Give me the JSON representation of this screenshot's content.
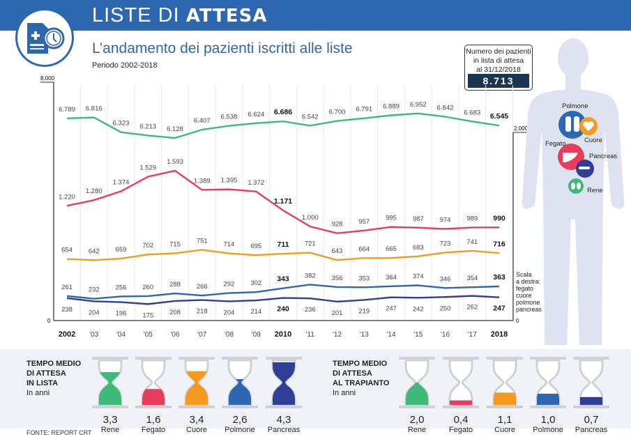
{
  "header": {
    "title_light": "LISTE DI",
    "title_bold": "ATTESA",
    "subtitle": "L’andamento dei pazienti iscritti alle liste",
    "period": "Periodo 2002-2018"
  },
  "total": {
    "label_line1": "Numero dei pazienti",
    "label_line2": "in lista di attesa",
    "label_line3": "al 31/12/2018",
    "value": "8.713"
  },
  "chart_data": {
    "type": "line",
    "x": [
      "2002",
      "'03",
      "'04",
      "'05",
      "'06",
      "'07",
      "'08",
      "'09",
      "2010",
      "'11",
      "'12",
      "'13",
      "'14",
      "'15",
      "'16",
      "'17",
      "2018"
    ],
    "bold_x": [
      0,
      8,
      16
    ],
    "left_axis": {
      "ylim": [
        0,
        8000
      ],
      "tick_labels": [
        "8.000",
        "0"
      ]
    },
    "right_axis": {
      "ylim": [
        0,
        2000
      ],
      "tick_labels": [
        "2.000",
        "0"
      ],
      "note": [
        "Scala",
        "a destra:",
        "fegato",
        "cuore",
        "polmone",
        "pancreas"
      ]
    },
    "series": [
      {
        "name": "Rene",
        "axis": "left",
        "color": "#3dba7a",
        "label_pos": "above",
        "values": [
          6789,
          6816,
          6323,
          6213,
          6128,
          6407,
          6538,
          6624,
          6686,
          6542,
          6700,
          6791,
          6889,
          6952,
          6842,
          6683,
          6545
        ]
      },
      {
        "name": "Fegato",
        "axis": "right",
        "color": "#e83c5c",
        "label_pos": "above",
        "values": [
          1220,
          1280,
          1374,
          1529,
          1593,
          1389,
          1395,
          1372,
          1171,
          1000,
          928,
          957,
          995,
          987,
          974,
          989,
          990
        ]
      },
      {
        "name": "Cuore",
        "axis": "right",
        "color": "#f59a1e",
        "label_pos": "above",
        "values": [
          654,
          642,
          659,
          702,
          715,
          751,
          714,
          695,
          711,
          721,
          643,
          664,
          665,
          683,
          723,
          741,
          716
        ]
      },
      {
        "name": "Polmone",
        "axis": "right",
        "color": "#2d67b0",
        "label_pos": "above",
        "values": [
          261,
          232,
          256,
          260,
          288,
          266,
          292,
          302,
          343,
          382,
          356,
          353,
          364,
          374,
          346,
          354,
          363
        ]
      },
      {
        "name": "Pancreas",
        "axis": "right",
        "color": "#2f3f96",
        "label_pos": "below",
        "values": [
          238,
          204,
          196,
          175,
          208,
          218,
          204,
          214,
          240,
          236,
          201,
          219,
          247,
          242,
          250,
          262,
          247
        ]
      }
    ]
  },
  "body": {
    "labels": [
      "Polmone",
      "Cuore",
      "Fegato",
      "Pancreas",
      "Rene"
    ]
  },
  "panels": [
    {
      "title": [
        "TEMPO MEDIO",
        "DI ATTESA",
        "IN LISTA"
      ],
      "unit": "In anni",
      "items": [
        {
          "name": "Rene",
          "value": "3,3",
          "years": 3.3,
          "color": "#3dba7a"
        },
        {
          "name": "Fegato",
          "value": "1,6",
          "years": 1.6,
          "color": "#e83c5c"
        },
        {
          "name": "Cuore",
          "value": "3,4",
          "years": 3.4,
          "color": "#f59a1e"
        },
        {
          "name": "Polmone",
          "value": "2,6",
          "years": 2.6,
          "color": "#2d67b0"
        },
        {
          "name": "Pancreas",
          "value": "4,3",
          "years": 4.3,
          "color": "#2f3f96"
        }
      ]
    },
    {
      "title": [
        "TEMPO MEDIO",
        "DI ATTESA",
        "AL TRAPIANTO"
      ],
      "unit": "In anni",
      "items": [
        {
          "name": "Rene",
          "value": "2,0",
          "years": 2.0,
          "color": "#3dba7a"
        },
        {
          "name": "Fegato",
          "value": "0,4",
          "years": 0.4,
          "color": "#e83c5c"
        },
        {
          "name": "Cuore",
          "value": "1,1",
          "years": 1.1,
          "color": "#f59a1e"
        },
        {
          "name": "Polmone",
          "value": "1,0",
          "years": 1.0,
          "color": "#2d67b0"
        },
        {
          "name": "Pancreas",
          "value": "0,7",
          "years": 0.7,
          "color": "#2f3f96"
        }
      ]
    }
  ],
  "source": "FONTE: REPORT CRT"
}
